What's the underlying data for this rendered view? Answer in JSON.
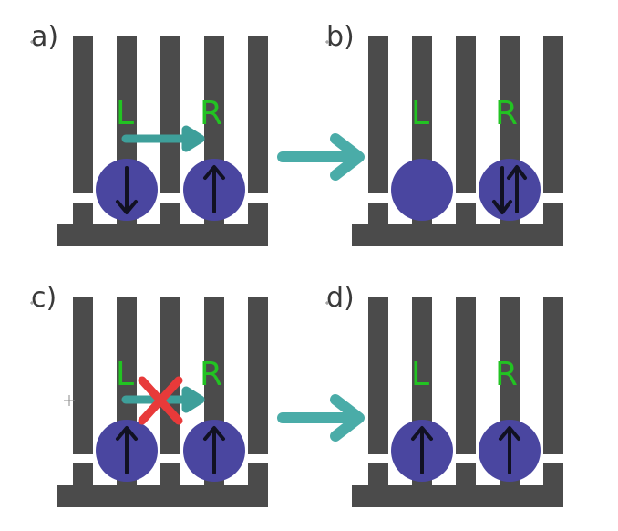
{
  "colors": {
    "wall": "#4b4b4b",
    "dot": "#4a46a0",
    "spin_arrow": "#111122",
    "dot_label": "#22c322",
    "hop_arrow": "#3e9f9a",
    "transition_arrow": "#4aaca8",
    "blocked_cross": "#e83a3a"
  },
  "panels": [
    {
      "id": "a",
      "label": "a)",
      "left_label": "L",
      "right_label": "R",
      "left_spin": "down",
      "right_spin": "up",
      "hop": "allowed"
    },
    {
      "id": "b",
      "label": "b)",
      "left_label": "L",
      "right_label": "R",
      "left_spin": "empty",
      "right_spin": "up-down",
      "hop": "none"
    },
    {
      "id": "c",
      "label": "c)",
      "left_label": "L",
      "right_label": "R",
      "left_spin": "up",
      "right_spin": "up",
      "hop": "blocked"
    },
    {
      "id": "d",
      "label": "d)",
      "left_label": "L",
      "right_label": "R",
      "left_spin": "up",
      "right_spin": "up",
      "hop": "none"
    }
  ],
  "transitions": [
    {
      "from": "a",
      "to": "b",
      "icon": "right-arrow-icon"
    },
    {
      "from": "c",
      "to": "d",
      "icon": "right-arrow-icon"
    }
  ]
}
